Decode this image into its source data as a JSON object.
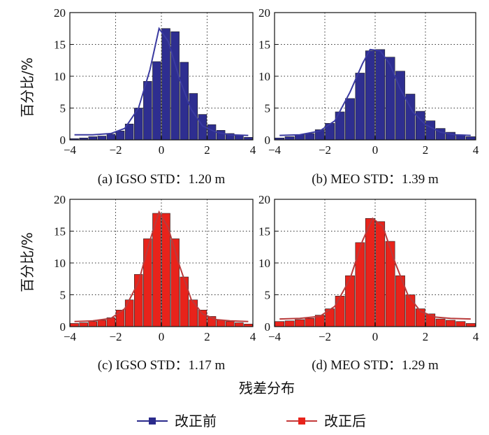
{
  "figure": {
    "xlabel": "残差分布",
    "ylabel": "百分比/%",
    "legend": [
      {
        "label": "改正前",
        "color": "#2b2b8c"
      },
      {
        "label": "改正后",
        "color": "#c43a3a"
      }
    ]
  },
  "chart_data": [
    {
      "type": "bar",
      "caption": "(a) IGSO STD：1.20 m",
      "series_name": "改正前",
      "xlim": [
        -4,
        4
      ],
      "ylim": [
        0,
        20
      ],
      "xticks": [
        -4,
        -2,
        0,
        2,
        4
      ],
      "yticks": [
        0,
        5,
        10,
        15,
        20
      ],
      "bar_color": "#2e2e90",
      "line_color": "#3a3aa0",
      "bin_centers": [
        -3.8,
        -3.4,
        -3.0,
        -2.6,
        -2.2,
        -1.8,
        -1.4,
        -1.0,
        -0.6,
        -0.2,
        0.2,
        0.6,
        1.0,
        1.4,
        1.8,
        2.2,
        2.6,
        3.0,
        3.4,
        3.8
      ],
      "values": [
        0.2,
        0.3,
        0.5,
        0.6,
        0.9,
        1.4,
        2.5,
        5.0,
        9.2,
        12.3,
        17.5,
        17.0,
        12.2,
        7.3,
        4.0,
        2.4,
        1.5,
        1.0,
        0.7,
        0.4
      ],
      "fit_curve": {
        "x": [
          -3.8,
          -3.0,
          -2.2,
          -1.6,
          -1.0,
          -0.5,
          -0.1,
          0.3,
          0.8,
          1.3,
          1.8,
          2.4,
          3.0,
          3.8
        ],
        "y": [
          0.8,
          0.8,
          1.0,
          1.8,
          5.0,
          11.0,
          17.5,
          15.5,
          9.5,
          4.8,
          2.2,
          1.2,
          0.8,
          0.7
        ]
      }
    },
    {
      "type": "bar",
      "caption": "(b) MEO STD：1.39 m",
      "series_name": "改正前",
      "xlim": [
        -4,
        4
      ],
      "ylim": [
        0,
        20
      ],
      "xticks": [
        -4,
        -2,
        0,
        2,
        4
      ],
      "yticks": [
        0,
        5,
        10,
        15,
        20
      ],
      "bar_color": "#2e2e90",
      "line_color": "#3a3aa0",
      "bin_centers": [
        -3.8,
        -3.4,
        -3.0,
        -2.6,
        -2.2,
        -1.8,
        -1.4,
        -1.0,
        -0.6,
        -0.2,
        0.2,
        0.6,
        1.0,
        1.4,
        1.8,
        2.2,
        2.6,
        3.0,
        3.4,
        3.8
      ],
      "values": [
        0.3,
        0.5,
        0.8,
        1.0,
        1.6,
        2.6,
        4.4,
        6.5,
        10.5,
        14.0,
        14.2,
        13.0,
        10.8,
        7.2,
        4.5,
        3.0,
        1.8,
        1.2,
        0.8,
        0.5
      ],
      "fit_curve": {
        "x": [
          -3.8,
          -3.0,
          -2.2,
          -1.6,
          -1.0,
          -0.5,
          -0.2,
          0.2,
          0.6,
          1.0,
          1.5,
          2.0,
          2.6,
          3.2,
          3.8
        ],
        "y": [
          0.7,
          0.8,
          1.4,
          3.0,
          7.5,
          12.0,
          14.2,
          14.0,
          11.8,
          8.0,
          4.4,
          2.4,
          1.2,
          0.8,
          0.7
        ]
      }
    },
    {
      "type": "bar",
      "caption": "(c) IGSO STD：1.17 m",
      "series_name": "改正后",
      "xlim": [
        -4,
        4
      ],
      "ylim": [
        0,
        20
      ],
      "xticks": [
        -4,
        -2,
        0,
        2,
        4
      ],
      "yticks": [
        0,
        5,
        10,
        15,
        20
      ],
      "bar_color": "#e8231b",
      "line_color": "#b83b3b",
      "bin_centers": [
        -3.8,
        -3.4,
        -3.0,
        -2.6,
        -2.2,
        -1.8,
        -1.4,
        -1.0,
        -0.6,
        -0.2,
        0.2,
        0.6,
        1.0,
        1.4,
        1.8,
        2.2,
        2.6,
        3.0,
        3.4,
        3.8
      ],
      "values": [
        0.5,
        0.6,
        0.8,
        1.0,
        1.4,
        2.6,
        4.2,
        8.2,
        13.8,
        17.8,
        17.8,
        13.8,
        7.8,
        4.2,
        2.6,
        1.6,
        1.0,
        0.8,
        0.6,
        0.4
      ],
      "fit_curve": {
        "x": [
          -3.8,
          -3.0,
          -2.2,
          -1.6,
          -1.0,
          -0.5,
          -0.1,
          0.3,
          0.8,
          1.3,
          1.8,
          2.4,
          3.0,
          3.8
        ],
        "y": [
          0.8,
          0.9,
          1.3,
          2.8,
          7.0,
          13.5,
          18.0,
          15.5,
          9.5,
          4.3,
          2.0,
          1.1,
          0.9,
          0.8
        ]
      }
    },
    {
      "type": "bar",
      "caption": "(d) MEO STD：1.29 m",
      "series_name": "改正后",
      "xlim": [
        -4,
        4
      ],
      "ylim": [
        0,
        20
      ],
      "xticks": [
        -4,
        -2,
        0,
        2,
        4
      ],
      "yticks": [
        0,
        5,
        10,
        15,
        20
      ],
      "bar_color": "#e8231b",
      "line_color": "#b83b3b",
      "bin_centers": [
        -3.8,
        -3.4,
        -3.0,
        -2.6,
        -2.2,
        -1.8,
        -1.4,
        -1.0,
        -0.6,
        -0.2,
        0.2,
        0.6,
        1.0,
        1.4,
        1.8,
        2.2,
        2.6,
        3.0,
        3.4,
        3.8
      ],
      "values": [
        0.8,
        0.9,
        1.1,
        1.3,
        1.8,
        2.8,
        4.8,
        8.0,
        13.2,
        17.0,
        16.5,
        13.4,
        8.0,
        5.0,
        2.8,
        2.0,
        1.2,
        1.0,
        0.8,
        0.5
      ],
      "fit_curve": {
        "x": [
          -3.8,
          -3.0,
          -2.2,
          -1.6,
          -1.0,
          -0.5,
          -0.1,
          0.3,
          0.8,
          1.3,
          1.8,
          2.4,
          3.0,
          3.8
        ],
        "y": [
          1.2,
          1.3,
          1.6,
          3.2,
          7.5,
          13.5,
          17.0,
          15.8,
          10.0,
          5.0,
          2.4,
          1.5,
          1.3,
          1.2
        ]
      }
    }
  ]
}
